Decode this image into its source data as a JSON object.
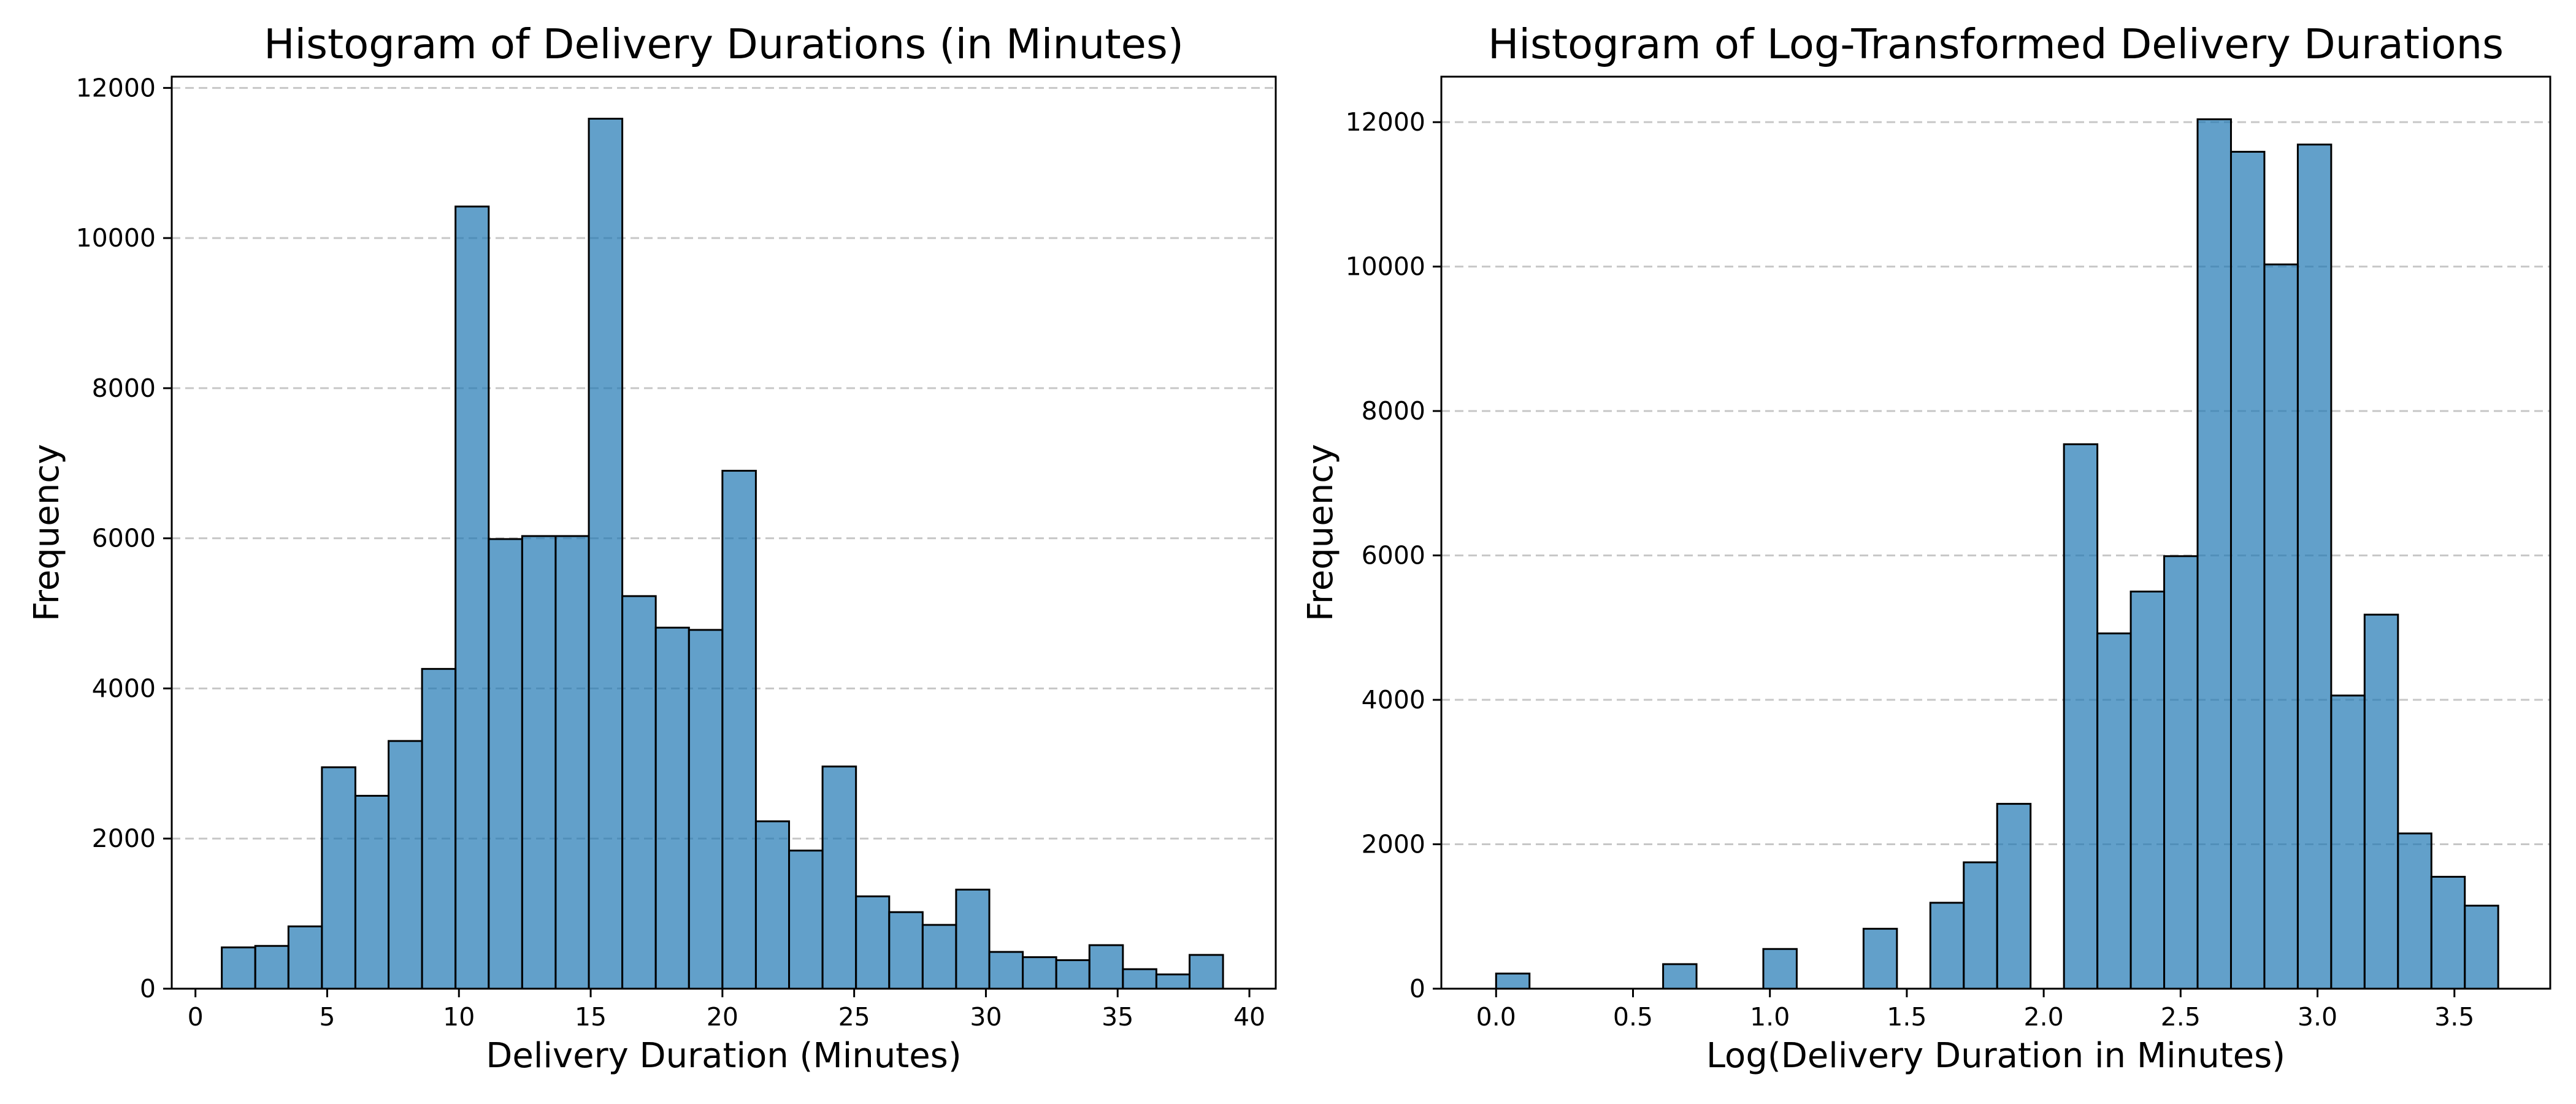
{
  "chart_data": [
    {
      "type": "bar",
      "title": "Histogram of Delivery Durations (in Minutes)",
      "xlabel": "Delivery Duration (Minutes)",
      "ylabel": "Frequency",
      "xlim": [
        -0.9,
        41.0
      ],
      "ylim": [
        0,
        12150
      ],
      "grid": "y",
      "xticks": [
        0,
        5,
        10,
        15,
        20,
        25,
        30,
        35,
        40
      ],
      "xtick_labels": [
        "0",
        "5",
        "10",
        "15",
        "20",
        "25",
        "30",
        "35",
        "40"
      ],
      "yticks": [
        0,
        2000,
        4000,
        6000,
        8000,
        10000,
        12000
      ],
      "ytick_labels": [
        "0",
        "2000",
        "4000",
        "6000",
        "8000",
        "10000",
        "12000"
      ],
      "series": [
        {
          "bins": [
            [
              1.0,
              2.27
            ],
            [
              2.27,
              3.53
            ],
            [
              3.53,
              4.8
            ],
            [
              4.8,
              6.07
            ],
            [
              6.07,
              7.33
            ],
            [
              7.33,
              8.6
            ],
            [
              8.6,
              9.87
            ],
            [
              9.87,
              11.13
            ],
            [
              11.13,
              12.4
            ],
            [
              12.4,
              13.67
            ],
            [
              13.67,
              14.93
            ],
            [
              14.93,
              16.2
            ],
            [
              16.2,
              17.47
            ],
            [
              17.47,
              18.73
            ],
            [
              18.73,
              20.0
            ],
            [
              20.0,
              21.27
            ],
            [
              21.27,
              22.53
            ],
            [
              22.53,
              23.8
            ],
            [
              23.8,
              25.07
            ],
            [
              25.07,
              26.33
            ],
            [
              26.33,
              27.6
            ],
            [
              27.6,
              28.87
            ],
            [
              28.87,
              30.13
            ],
            [
              30.13,
              31.4
            ],
            [
              31.4,
              32.67
            ],
            [
              32.67,
              33.93
            ],
            [
              33.93,
              35.2
            ],
            [
              35.2,
              36.47
            ],
            [
              36.47,
              37.73
            ],
            [
              37.73,
              39.0
            ]
          ],
          "values": [
            550,
            570,
            830,
            2950,
            2570,
            3300,
            4260,
            10420,
            5990,
            6030,
            6030,
            11590,
            5230,
            4810,
            4780,
            6900,
            2230,
            1840,
            2960,
            1230,
            1020,
            850,
            1320,
            490,
            420,
            380,
            580,
            260,
            190,
            450
          ]
        }
      ]
    },
    {
      "type": "bar",
      "title": "Histogram of Log-Transformed Delivery Durations",
      "xlabel": "Log(Delivery Duration in Minutes)",
      "ylabel": "Frequency",
      "xlim": [
        -0.2,
        3.85
      ],
      "ylim": [
        0,
        12630
      ],
      "grid": "y",
      "xticks": [
        0.0,
        0.5,
        1.0,
        1.5,
        2.0,
        2.5,
        3.0,
        3.5
      ],
      "xtick_labels": [
        "0.0",
        "0.5",
        "1.0",
        "1.5",
        "2.0",
        "2.5",
        "3.0",
        "3.5"
      ],
      "yticks": [
        0,
        2000,
        4000,
        6000,
        8000,
        10000,
        12000
      ],
      "ytick_labels": [
        "0",
        "2000",
        "4000",
        "6000",
        "8000",
        "10000",
        "12000"
      ],
      "series": [
        {
          "bins": [
            [
              0.0,
              0.122
            ],
            [
              0.122,
              0.244
            ],
            [
              0.244,
              0.366
            ],
            [
              0.366,
              0.488
            ],
            [
              0.488,
              0.61
            ],
            [
              0.61,
              0.732
            ],
            [
              0.732,
              0.854
            ],
            [
              0.854,
              0.976
            ],
            [
              0.976,
              1.098
            ],
            [
              1.098,
              1.22
            ],
            [
              1.22,
              1.342
            ],
            [
              1.342,
              1.464
            ],
            [
              1.464,
              1.586
            ],
            [
              1.586,
              1.708
            ],
            [
              1.708,
              1.83
            ],
            [
              1.83,
              1.952
            ],
            [
              1.952,
              2.074
            ],
            [
              2.074,
              2.196
            ],
            [
              2.196,
              2.318
            ],
            [
              2.318,
              2.44
            ],
            [
              2.44,
              2.562
            ],
            [
              2.562,
              2.684
            ],
            [
              2.684,
              2.806
            ],
            [
              2.806,
              2.928
            ],
            [
              2.928,
              3.05
            ],
            [
              3.05,
              3.172
            ],
            [
              3.172,
              3.294
            ],
            [
              3.294,
              3.416
            ],
            [
              3.416,
              3.538
            ],
            [
              3.538,
              3.66
            ]
          ],
          "values": [
            210,
            0,
            0,
            0,
            0,
            340,
            0,
            0,
            550,
            0,
            0,
            830,
            0,
            1190,
            1750,
            2560,
            0,
            7540,
            4920,
            5500,
            5990,
            12040,
            11590,
            10030,
            11690,
            4060,
            5180,
            2150,
            1550,
            1150
          ]
        }
      ]
    }
  ]
}
